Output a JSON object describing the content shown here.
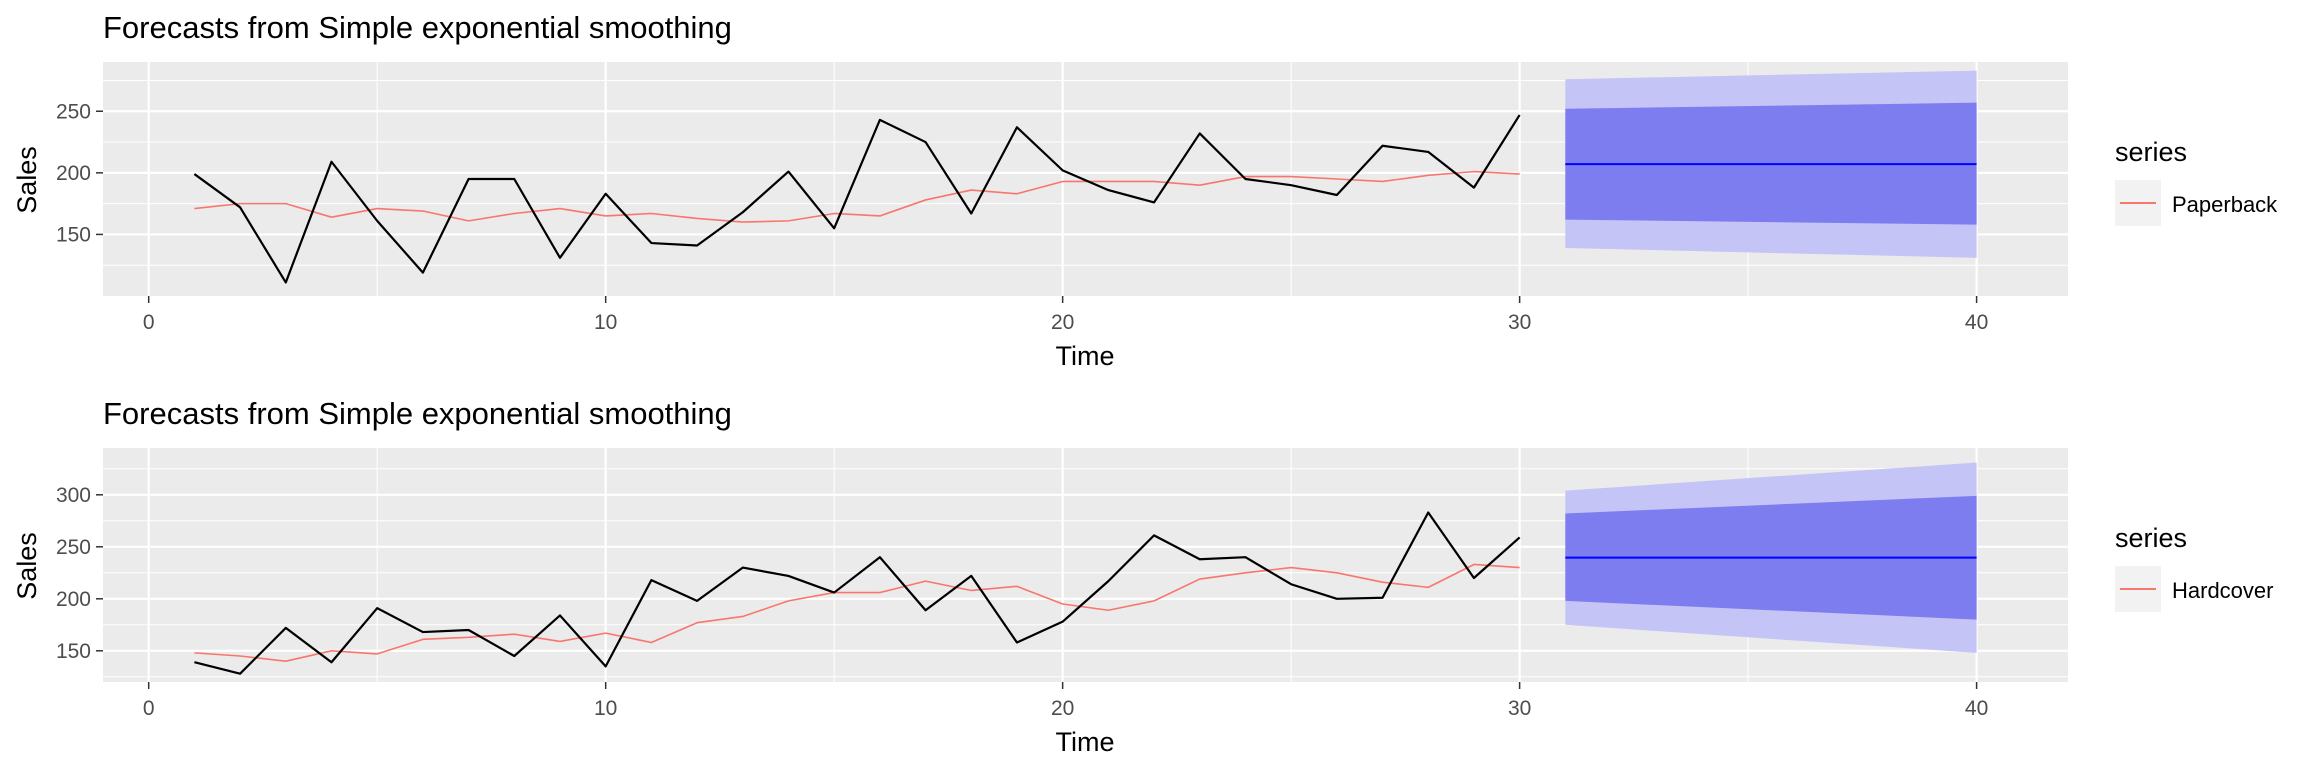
{
  "chart_data": [
    {
      "type": "line",
      "title": "Forecasts from Simple exponential smoothing",
      "xlabel": "Time",
      "ylabel": "Sales",
      "xlim": [
        -1,
        42
      ],
      "ylim": [
        100,
        290
      ],
      "x_ticks": [
        0,
        10,
        20,
        30,
        40
      ],
      "y_ticks": [
        150,
        200,
        250
      ],
      "grid": true,
      "legend": {
        "title": "series",
        "entries": [
          "Paperback"
        ],
        "position": "right"
      },
      "x": [
        1,
        2,
        3,
        4,
        5,
        6,
        7,
        8,
        9,
        10,
        11,
        12,
        13,
        14,
        15,
        16,
        17,
        18,
        19,
        20,
        21,
        22,
        23,
        24,
        25,
        26,
        27,
        28,
        29,
        30
      ],
      "series": [
        {
          "name": "",
          "role": "observed",
          "color": "#000000",
          "values": [
            199,
            172,
            111,
            209,
            161,
            119,
            195,
            195,
            131,
            183,
            143,
            141,
            168,
            201,
            155,
            243,
            225,
            167,
            237,
            202,
            186,
            176,
            232,
            195,
            190,
            182,
            222,
            217,
            188,
            247
          ]
        },
        {
          "name": "Paperback",
          "role": "fitted",
          "color": "#F8766D",
          "values": [
            171,
            175,
            175,
            164,
            171,
            169,
            161,
            167,
            171,
            165,
            167,
            163,
            160,
            161,
            167,
            165,
            178,
            186,
            183,
            193,
            193,
            193,
            190,
            197,
            197,
            195,
            193,
            198,
            201,
            199
          ]
        }
      ],
      "forecast": {
        "x": [
          31,
          40
        ],
        "mean": [
          207.1,
          207.1
        ],
        "lo80": [
          162,
          158
        ],
        "hi80": [
          252,
          257
        ],
        "lo95": [
          139,
          131
        ],
        "hi95": [
          276,
          283
        ],
        "color_mean": "#0000FF",
        "color_80": "#7D7DF0",
        "color_95": "#C4C4F6"
      }
    },
    {
      "type": "line",
      "title": "Forecasts from Simple exponential smoothing",
      "xlabel": "Time",
      "ylabel": "Sales",
      "xlim": [
        -1,
        42
      ],
      "ylim": [
        120,
        345
      ],
      "x_ticks": [
        0,
        10,
        20,
        30,
        40
      ],
      "y_ticks": [
        150,
        200,
        250,
        300
      ],
      "grid": true,
      "legend": {
        "title": "series",
        "entries": [
          "Hardcover"
        ],
        "position": "right"
      },
      "x": [
        1,
        2,
        3,
        4,
        5,
        6,
        7,
        8,
        9,
        10,
        11,
        12,
        13,
        14,
        15,
        16,
        17,
        18,
        19,
        20,
        21,
        22,
        23,
        24,
        25,
        26,
        27,
        28,
        29,
        30
      ],
      "series": [
        {
          "name": "",
          "role": "observed",
          "color": "#000000",
          "values": [
            139,
            128,
            172,
            139,
            191,
            168,
            170,
            145,
            184,
            135,
            218,
            198,
            230,
            222,
            206,
            240,
            189,
            222,
            158,
            178,
            217,
            261,
            238,
            240,
            214,
            200,
            201,
            283,
            220,
            259
          ]
        },
        {
          "name": "Hardcover",
          "role": "fitted",
          "color": "#F8766D",
          "values": [
            148,
            145,
            140,
            150,
            147,
            161,
            163,
            166,
            159,
            167,
            158,
            177,
            183,
            198,
            206,
            206,
            217,
            208,
            212,
            195,
            189,
            198,
            219,
            225,
            230,
            225,
            216,
            211,
            233,
            230
          ]
        }
      ],
      "forecast": {
        "x": [
          31,
          40
        ],
        "mean": [
          239.6,
          239.6
        ],
        "lo80": [
          198,
          180
        ],
        "hi80": [
          282,
          299
        ],
        "lo95": [
          175,
          148
        ],
        "hi95": [
          304,
          331
        ],
        "color_mean": "#0000FF",
        "color_80": "#7D7DF0",
        "color_95": "#C4C4F6"
      }
    }
  ]
}
